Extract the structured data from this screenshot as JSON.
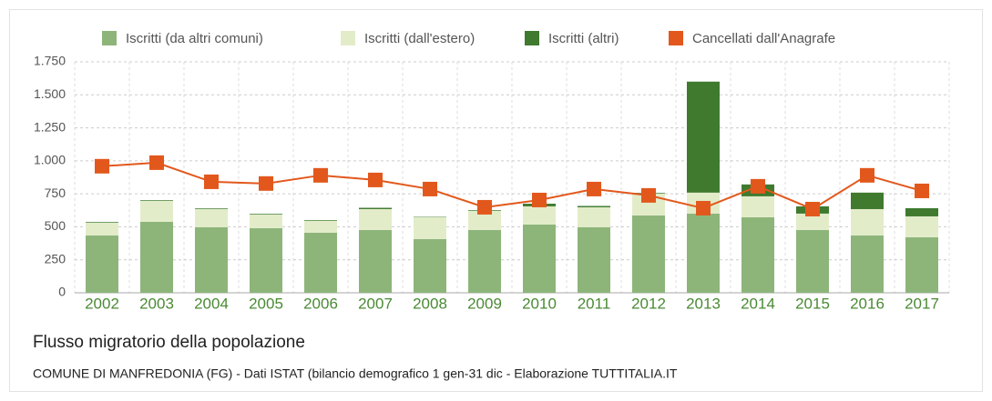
{
  "chart_data": {
    "type": "bar",
    "stacked": true,
    "title": "Flusso migratorio della popolazione",
    "subtitle": "COMUNE DI MANFREDONIA (FG) - Dati ISTAT (bilancio demografico 1 gen-31 dic - Elaborazione TUTTITALIA.IT",
    "categories": [
      "2002",
      "2003",
      "2004",
      "2005",
      "2006",
      "2007",
      "2008",
      "2009",
      "2010",
      "2011",
      "2012",
      "2013",
      "2014",
      "2015",
      "2016",
      "2017"
    ],
    "series": [
      {
        "name": "Iscritti (da altri comuni)",
        "type": "bar",
        "color": "#8db57a",
        "values": [
          434,
          538,
          497,
          490,
          455,
          476,
          407,
          476,
          517,
          497,
          586,
          600,
          572,
          476,
          434,
          421
        ]
      },
      {
        "name": "Iscritti (dall'estero)",
        "type": "bar",
        "color": "#e3ecc9",
        "values": [
          97,
          159,
          137,
          103,
          90,
          158,
          165,
          145,
          138,
          151,
          166,
          159,
          159,
          124,
          200,
          158
        ]
      },
      {
        "name": "Iscritti (altri)",
        "type": "bar",
        "color": "#3f7a2f",
        "values": [
          5,
          5,
          5,
          5,
          5,
          10,
          3,
          5,
          20,
          10,
          5,
          841,
          90,
          55,
          125,
          62
        ]
      },
      {
        "name": "Cancellati dall'Anagrafe",
        "type": "line",
        "color": "#e2581c",
        "values": [
          959,
          986,
          841,
          828,
          890,
          855,
          786,
          648,
          703,
          786,
          738,
          641,
          807,
          634,
          890,
          772
        ]
      }
    ],
    "ylim": [
      0,
      1750
    ],
    "yticks": [
      0,
      250,
      500,
      750,
      {
        "value": 1000,
        "label": "1.000"
      },
      {
        "value": 1250,
        "label": "1.250"
      },
      {
        "value": 1500,
        "label": "1.500"
      },
      {
        "value": 1750,
        "label": "1.750"
      }
    ],
    "grid": true
  }
}
